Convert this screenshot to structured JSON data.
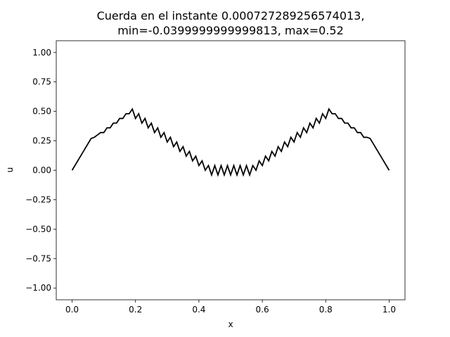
{
  "chart_data": {
    "type": "line",
    "title_lines": [
      "Cuerda en el instante 0.000727289256574013,",
      "min=-0.0399999999999813, max=0.52"
    ],
    "xlabel": "x",
    "ylabel": "u",
    "xlim": [
      -0.05,
      1.05
    ],
    "ylim": [
      -1.1,
      1.1
    ],
    "x_ticks": [
      0.0,
      0.2,
      0.4,
      0.6,
      0.8,
      1.0
    ],
    "x_tick_labels": [
      "0.0",
      "0.2",
      "0.4",
      "0.6",
      "0.8",
      "1.0"
    ],
    "y_ticks": [
      -1.0,
      -0.75,
      -0.5,
      -0.25,
      0.0,
      0.25,
      0.5,
      0.75,
      1.0
    ],
    "y_tick_labels": [
      "−1.00",
      "−0.75",
      "−0.50",
      "−0.25",
      "0.00",
      "0.25",
      "0.50",
      "0.75",
      "1.00"
    ],
    "grid": false,
    "line_color": "#000000",
    "series": [
      {
        "x": [
          0.0,
          0.02,
          0.04,
          0.06,
          0.07,
          0.08,
          0.09,
          0.1,
          0.11,
          0.12,
          0.13,
          0.14,
          0.15,
          0.16,
          0.17,
          0.18,
          0.19,
          0.2,
          0.21,
          0.22,
          0.23,
          0.24,
          0.25,
          0.26,
          0.27,
          0.28,
          0.29,
          0.3,
          0.31,
          0.32,
          0.33,
          0.34,
          0.35,
          0.36,
          0.37,
          0.38,
          0.39,
          0.4,
          0.41,
          0.42,
          0.43,
          0.44,
          0.45,
          0.46,
          0.47,
          0.48,
          0.49,
          0.5,
          0.51,
          0.52,
          0.53,
          0.54,
          0.55,
          0.56,
          0.57,
          0.58,
          0.59,
          0.6,
          0.61,
          0.62,
          0.63,
          0.64,
          0.65,
          0.66,
          0.67,
          0.68,
          0.69,
          0.7,
          0.71,
          0.72,
          0.73,
          0.74,
          0.75,
          0.76,
          0.77,
          0.78,
          0.79,
          0.8,
          0.81,
          0.82,
          0.83,
          0.84,
          0.85,
          0.86,
          0.87,
          0.88,
          0.89,
          0.9,
          0.91,
          0.92,
          0.93,
          0.94,
          0.96,
          0.98,
          1.0
        ],
        "y": [
          0.0,
          0.09,
          0.18,
          0.27,
          0.28,
          0.3,
          0.32,
          0.32,
          0.36,
          0.36,
          0.4,
          0.4,
          0.44,
          0.44,
          0.48,
          0.48,
          0.52,
          0.44,
          0.48,
          0.4,
          0.44,
          0.36,
          0.4,
          0.32,
          0.36,
          0.28,
          0.32,
          0.24,
          0.28,
          0.2,
          0.24,
          0.16,
          0.2,
          0.12,
          0.16,
          0.08,
          0.12,
          0.04,
          0.08,
          0.0,
          0.04,
          -0.04,
          0.04,
          -0.04,
          0.04,
          -0.04,
          0.04,
          -0.04,
          0.04,
          -0.04,
          0.04,
          -0.04,
          0.04,
          -0.04,
          0.04,
          0.0,
          0.08,
          0.04,
          0.12,
          0.08,
          0.16,
          0.12,
          0.2,
          0.16,
          0.24,
          0.2,
          0.28,
          0.24,
          0.32,
          0.28,
          0.36,
          0.32,
          0.4,
          0.36,
          0.44,
          0.4,
          0.48,
          0.44,
          0.52,
          0.48,
          0.48,
          0.44,
          0.44,
          0.4,
          0.4,
          0.36,
          0.36,
          0.32,
          0.32,
          0.28,
          0.28,
          0.27,
          0.18,
          0.09,
          0.0
        ]
      }
    ]
  }
}
